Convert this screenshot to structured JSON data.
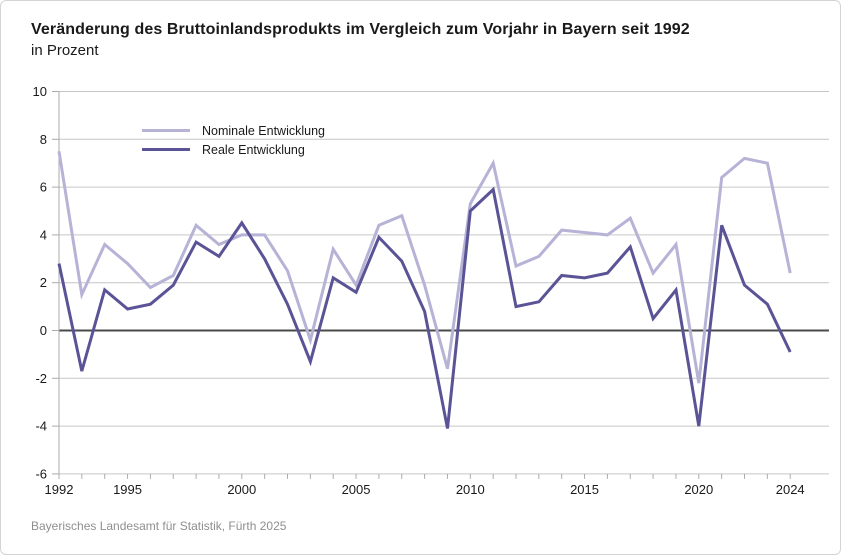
{
  "header": {
    "title": "Veränderung des Bruttoinlandsprodukts im Vergleich zum Vorjahr in Bayern seit 1992",
    "subtitle": "in Prozent"
  },
  "legend": {
    "items": [
      {
        "label": "Nominale Entwicklung",
        "color": "#b6b3d6"
      },
      {
        "label": "Reale Entwicklung",
        "color": "#5a5496"
      }
    ]
  },
  "footer": {
    "source": "Bayerisches Landesamt für Statistik, Fürth 2025"
  },
  "chart_data": {
    "type": "line",
    "title": "Veränderung des Bruttoinlandsprodukts im Vergleich zum Vorjahr in Bayern seit 1992",
    "subtitle_unit": "in Prozent",
    "x": [
      1992,
      1993,
      1994,
      1995,
      1996,
      1997,
      1998,
      1999,
      2000,
      2001,
      2002,
      2003,
      2004,
      2005,
      2006,
      2007,
      2008,
      2009,
      2010,
      2011,
      2012,
      2013,
      2014,
      2015,
      2016,
      2017,
      2018,
      2019,
      2020,
      2021,
      2022,
      2023,
      2024
    ],
    "series": [
      {
        "name": "Nominale Entwicklung",
        "color": "#b6b3d6",
        "values": [
          7.5,
          1.5,
          3.6,
          2.8,
          1.8,
          2.3,
          4.4,
          3.6,
          4.0,
          4.0,
          2.5,
          -0.4,
          3.4,
          1.9,
          4.4,
          4.8,
          1.9,
          -1.6,
          5.3,
          7.0,
          2.7,
          3.1,
          4.2,
          4.1,
          4.0,
          4.7,
          2.4,
          3.6,
          -2.2,
          6.4,
          7.2,
          7.0,
          2.4
        ]
      },
      {
        "name": "Reale Entwicklung",
        "color": "#5a5496",
        "values": [
          2.8,
          -1.7,
          1.7,
          0.9,
          1.1,
          1.9,
          3.7,
          3.1,
          4.5,
          3.0,
          1.1,
          -1.3,
          2.2,
          1.6,
          3.9,
          2.9,
          0.8,
          -4.1,
          5.0,
          5.9,
          1.0,
          1.2,
          2.3,
          2.2,
          2.4,
          3.5,
          0.5,
          1.7,
          -4.0,
          4.4,
          1.9,
          1.1,
          -0.9
        ]
      }
    ],
    "ylim": [
      -6,
      10
    ],
    "ytick_step": 2,
    "ytick_labels": [
      "10",
      "8",
      "6",
      "4",
      "2",
      "0",
      "-2",
      "-4",
      "-6"
    ],
    "x_tick_labels": [
      1992,
      1995,
      2000,
      2005,
      2010,
      2015,
      2020,
      2024
    ],
    "grid": true,
    "legend_position": "inside-top-left",
    "colors": {
      "grid": "#c6c6c6",
      "zero_line": "#4a4a4a",
      "axis": "#ababab",
      "tick_text": "#1a1a1a"
    },
    "source": "Bayerisches Landesamt für Statistik, Fürth 2025"
  }
}
